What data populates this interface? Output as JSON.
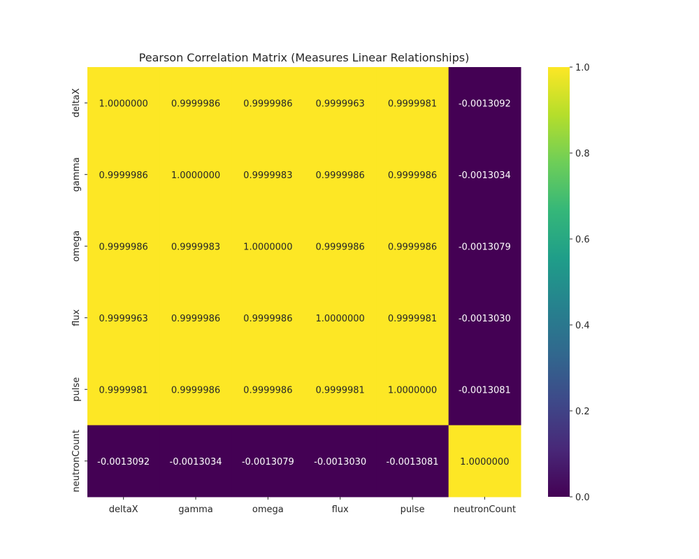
{
  "chart_data": {
    "type": "heatmap",
    "title": "Pearson Correlation Matrix (Measures Linear Relationships)",
    "xlabel": "",
    "ylabel": "",
    "x_categories": [
      "deltaX",
      "gamma",
      "omega",
      "flux",
      "pulse",
      "neutronCount"
    ],
    "y_categories": [
      "deltaX",
      "gamma",
      "omega",
      "flux",
      "pulse",
      "neutronCount"
    ],
    "values": [
      [
        1.0,
        0.9999986,
        0.9999986,
        0.9999963,
        0.9999981,
        -0.0013092
      ],
      [
        0.9999986,
        1.0,
        0.9999983,
        0.9999986,
        0.9999986,
        -0.0013034
      ],
      [
        0.9999986,
        0.9999983,
        1.0,
        0.9999986,
        0.9999986,
        -0.0013079
      ],
      [
        0.9999963,
        0.9999986,
        0.9999986,
        1.0,
        0.9999981,
        -0.001303
      ],
      [
        0.9999981,
        0.9999986,
        0.9999986,
        0.9999981,
        1.0,
        -0.0013081
      ],
      [
        -0.0013092,
        -0.0013034,
        -0.0013079,
        -0.001303,
        -0.0013081,
        1.0
      ]
    ],
    "annotation_decimals": 7,
    "colormap": "viridis",
    "colormap_stops": [
      "#440154",
      "#482878",
      "#3e4989",
      "#31688e",
      "#26828e",
      "#1f9e89",
      "#35b779",
      "#6ece58",
      "#b5de2b",
      "#fde725"
    ],
    "vmin": 0.0,
    "vmax": 1.0,
    "colorbar_ticks": [
      "0.0",
      "0.2",
      "0.4",
      "0.6",
      "0.8",
      "1.0"
    ],
    "colorbar_tick_values": [
      0.0,
      0.2,
      0.4,
      0.6,
      0.8,
      1.0
    ],
    "annotation_color_light": "#ffffff",
    "annotation_color_dark": "#262626",
    "grid": false,
    "legend": "colorbar-right"
  }
}
